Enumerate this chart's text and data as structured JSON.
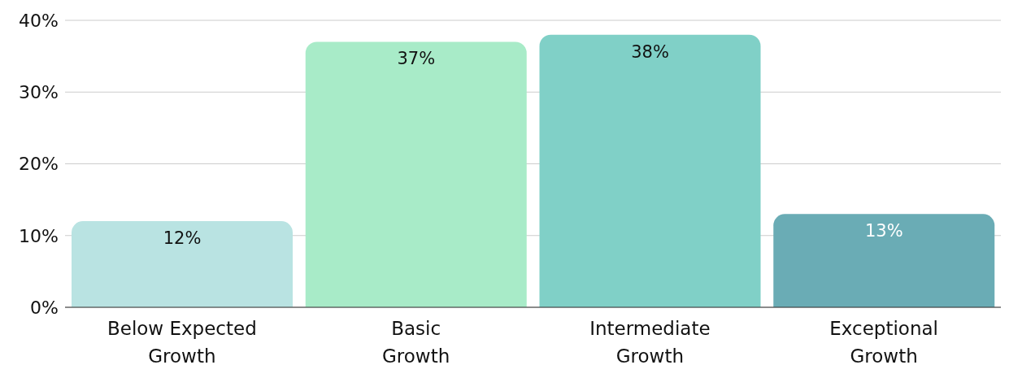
{
  "chart_data": {
    "type": "bar",
    "categories": [
      "Below Expected Growth",
      "Basic Growth",
      "Intermediate Growth",
      "Exceptional Growth"
    ],
    "values": [
      12,
      37,
      38,
      13
    ],
    "colors": [
      "#b9e3e2",
      "#a8ebc8",
      "#80d0c7",
      "#6aacb5"
    ],
    "value_labels": [
      "12%",
      "37%",
      "38%",
      "13%"
    ],
    "ylim": [
      0,
      40
    ],
    "yticks": [
      {
        "value": 0,
        "label": "0%"
      },
      {
        "value": 10,
        "label": "10%"
      },
      {
        "value": 20,
        "label": "20%"
      },
      {
        "value": 30,
        "label": "30%"
      },
      {
        "value": 40,
        "label": "40%"
      }
    ],
    "grid": "y",
    "legend": false
  }
}
